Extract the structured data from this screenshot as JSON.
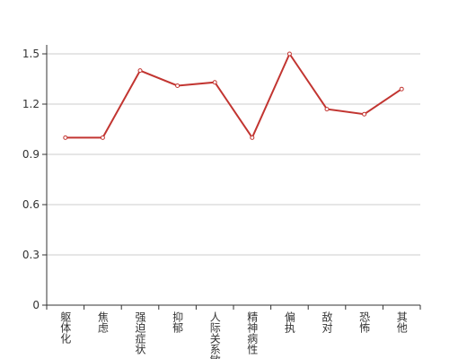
{
  "chart_data": {
    "type": "line",
    "categories": [
      "躯体化",
      "焦虑",
      "强迫症状",
      "抑郁",
      "人际关系敏感",
      "精神病性",
      "偏执",
      "敌对",
      "恐怖",
      "其他"
    ],
    "values": [
      1.0,
      1.0,
      1.4,
      1.31,
      1.33,
      1.0,
      1.5,
      1.17,
      1.14,
      1.29
    ],
    "color": "#c23531",
    "ylim": [
      0,
      1.5
    ],
    "yticks": [
      0,
      0.3,
      0.6,
      0.9,
      1.2,
      1.5
    ],
    "grid": true
  }
}
